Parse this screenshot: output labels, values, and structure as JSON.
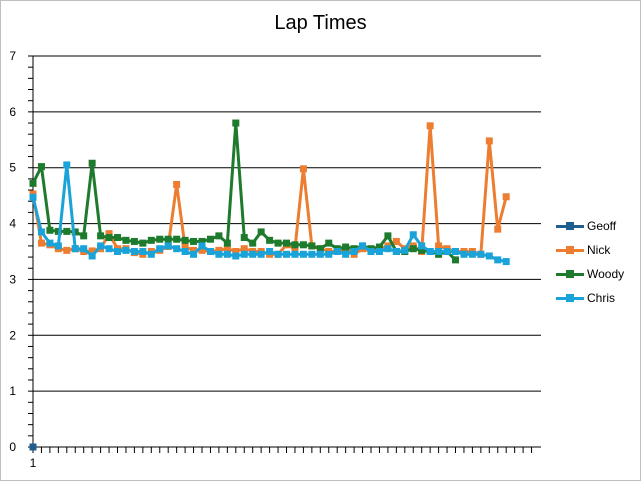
{
  "chart_data": {
    "type": "line",
    "title": "Lap Times",
    "xlabel": "",
    "ylabel": "",
    "ylim": [
      0,
      7
    ],
    "yticks": [
      "0",
      "1",
      "2",
      "3",
      "4",
      "5",
      "6",
      "7"
    ],
    "x_tick_label": "1",
    "grid": true,
    "legend_position": "right",
    "series": [
      {
        "name": "Geoff",
        "color": "#1f5f8f",
        "values": [
          0
        ]
      },
      {
        "name": "Nick",
        "color": "#ed7d31",
        "values": [
          4.53,
          3.65,
          3.62,
          3.55,
          3.52,
          3.55,
          3.5,
          3.51,
          3.55,
          3.82,
          3.55,
          3.55,
          3.48,
          3.45,
          3.5,
          3.52,
          3.59,
          4.7,
          3.58,
          3.52,
          3.52,
          3.5,
          3.52,
          3.55,
          3.5,
          3.55,
          3.5,
          3.5,
          3.45,
          3.45,
          3.62,
          3.55,
          4.98,
          3.6,
          3.55,
          3.5,
          3.5,
          3.55,
          3.45,
          3.55,
          3.5,
          3.55,
          3.6,
          3.68,
          3.55,
          3.6,
          3.5,
          5.75,
          3.6,
          3.55,
          3.5,
          3.5,
          3.5,
          3.45,
          5.48,
          3.9,
          4.48
        ]
      },
      {
        "name": "Woody",
        "color": "#1e7a2c",
        "values": [
          4.72,
          5.02,
          3.88,
          3.86,
          3.86,
          3.85,
          3.78,
          5.08,
          3.78,
          3.75,
          3.75,
          3.7,
          3.68,
          3.65,
          3.7,
          3.72,
          3.72,
          3.72,
          3.7,
          3.68,
          3.68,
          3.72,
          3.78,
          3.65,
          5.8,
          3.75,
          3.65,
          3.85,
          3.7,
          3.65,
          3.65,
          3.62,
          3.62,
          3.6,
          3.55,
          3.65,
          3.55,
          3.58,
          3.55,
          3.6,
          3.55,
          3.58,
          3.78,
          3.5,
          3.5,
          3.55,
          3.52,
          3.5,
          3.45,
          3.5,
          3.35
        ]
      },
      {
        "name": "Chris",
        "color": "#1aa3d9",
        "values": [
          4.47,
          3.85,
          3.65,
          3.6,
          5.05,
          3.55,
          3.55,
          3.42,
          3.6,
          3.55,
          3.5,
          3.52,
          3.5,
          3.5,
          3.45,
          3.55,
          3.6,
          3.55,
          3.5,
          3.45,
          3.6,
          3.5,
          3.45,
          3.45,
          3.42,
          3.45,
          3.45,
          3.45,
          3.5,
          3.45,
          3.45,
          3.45,
          3.45,
          3.45,
          3.45,
          3.45,
          3.5,
          3.45,
          3.5,
          3.6,
          3.5,
          3.5,
          3.55,
          3.5,
          3.52,
          3.8,
          3.6,
          3.5,
          3.5,
          3.5,
          3.5,
          3.45,
          3.45,
          3.45,
          3.42,
          3.35,
          3.32
        ]
      }
    ]
  }
}
